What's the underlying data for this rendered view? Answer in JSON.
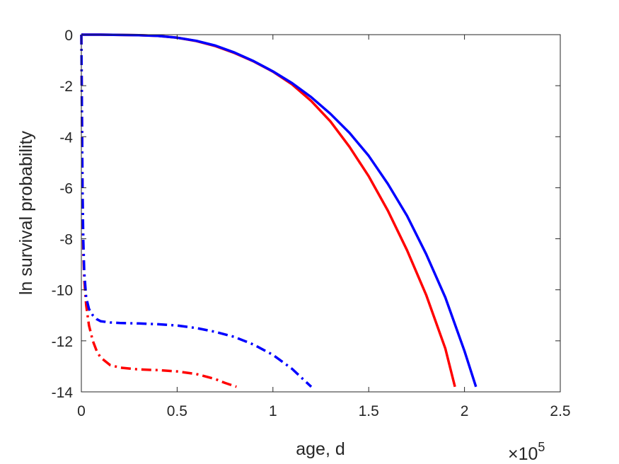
{
  "chart_data": {
    "type": "line",
    "xlabel": "age, d",
    "ylabel": "ln survival probability",
    "x_multiplier_label": "×10",
    "x_multiplier_exponent": "5",
    "xlim": [
      0,
      250000
    ],
    "ylim": [
      -14,
      0
    ],
    "x_ticks": [
      0,
      50000,
      100000,
      150000,
      200000,
      250000
    ],
    "x_tick_labels": [
      "0",
      "0.5",
      "1",
      "1.5",
      "2",
      "2.5"
    ],
    "y_ticks": [
      0,
      -2,
      -4,
      -6,
      -8,
      -10,
      -12,
      -14
    ],
    "y_tick_labels": [
      "0",
      "-2",
      "-4",
      "-6",
      "-8",
      "-10",
      "-12",
      "-14"
    ],
    "grid": false,
    "series": [
      {
        "color": "#ff0000",
        "style": "solid",
        "points": [
          [
            0,
            0
          ],
          [
            10000,
            0
          ],
          [
            20000,
            -0.01
          ],
          [
            30000,
            -0.02
          ],
          [
            40000,
            -0.05
          ],
          [
            50000,
            -0.12
          ],
          [
            60000,
            -0.25
          ],
          [
            70000,
            -0.45
          ],
          [
            80000,
            -0.72
          ],
          [
            90000,
            -1.05
          ],
          [
            100000,
            -1.45
          ],
          [
            110000,
            -1.95
          ],
          [
            120000,
            -2.6
          ],
          [
            130000,
            -3.4
          ],
          [
            140000,
            -4.4
          ],
          [
            150000,
            -5.55
          ],
          [
            160000,
            -6.9
          ],
          [
            170000,
            -8.45
          ],
          [
            180000,
            -10.2
          ],
          [
            190000,
            -12.3
          ],
          [
            195000,
            -13.8
          ]
        ]
      },
      {
        "color": "#0000ff",
        "style": "solid",
        "points": [
          [
            0,
            0
          ],
          [
            10000,
            0
          ],
          [
            20000,
            -0.01
          ],
          [
            30000,
            -0.02
          ],
          [
            40000,
            -0.05
          ],
          [
            50000,
            -0.12
          ],
          [
            60000,
            -0.24
          ],
          [
            70000,
            -0.43
          ],
          [
            80000,
            -0.7
          ],
          [
            90000,
            -1.04
          ],
          [
            100000,
            -1.44
          ],
          [
            110000,
            -1.9
          ],
          [
            120000,
            -2.45
          ],
          [
            130000,
            -3.1
          ],
          [
            140000,
            -3.85
          ],
          [
            150000,
            -4.75
          ],
          [
            160000,
            -5.85
          ],
          [
            170000,
            -7.1
          ],
          [
            180000,
            -8.6
          ],
          [
            190000,
            -10.3
          ],
          [
            200000,
            -12.4
          ],
          [
            206000,
            -13.8
          ]
        ]
      },
      {
        "color": "#ff0000",
        "style": "dashdot",
        "points": [
          [
            0,
            0
          ],
          [
            300,
            -3
          ],
          [
            600,
            -6
          ],
          [
            1000,
            -8.5
          ],
          [
            1500,
            -9.6
          ],
          [
            2500,
            -10.6
          ],
          [
            4000,
            -11.4
          ],
          [
            6000,
            -12.0
          ],
          [
            8000,
            -12.4
          ],
          [
            10000,
            -12.65
          ],
          [
            15000,
            -12.95
          ],
          [
            20000,
            -13.05
          ],
          [
            30000,
            -13.12
          ],
          [
            40000,
            -13.15
          ],
          [
            50000,
            -13.2
          ],
          [
            60000,
            -13.3
          ],
          [
            70000,
            -13.5
          ],
          [
            75000,
            -13.65
          ],
          [
            81000,
            -13.8
          ]
        ]
      },
      {
        "color": "#0000ff",
        "style": "dashdot",
        "points": [
          [
            0,
            0
          ],
          [
            300,
            -3
          ],
          [
            600,
            -6
          ],
          [
            1000,
            -8
          ],
          [
            1500,
            -9.3
          ],
          [
            2500,
            -10.3
          ],
          [
            4000,
            -10.75
          ],
          [
            6000,
            -11.0
          ],
          [
            8000,
            -11.15
          ],
          [
            10000,
            -11.23
          ],
          [
            15000,
            -11.28
          ],
          [
            20000,
            -11.3
          ],
          [
            30000,
            -11.32
          ],
          [
            40000,
            -11.35
          ],
          [
            50000,
            -11.4
          ],
          [
            60000,
            -11.5
          ],
          [
            70000,
            -11.65
          ],
          [
            80000,
            -11.85
          ],
          [
            90000,
            -12.15
          ],
          [
            100000,
            -12.55
          ],
          [
            110000,
            -13.1
          ],
          [
            115000,
            -13.45
          ],
          [
            120000,
            -13.8
          ]
        ]
      }
    ]
  }
}
